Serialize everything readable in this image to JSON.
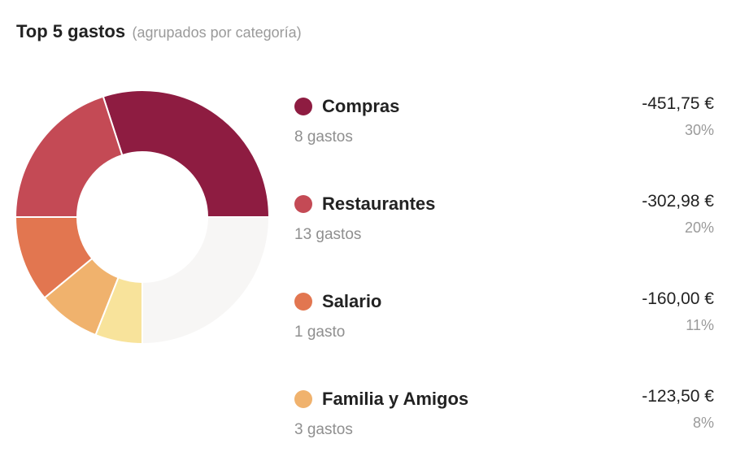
{
  "header": {
    "title": "Top 5 gastos",
    "subtitle": "(agrupados por categoría)"
  },
  "chart_data": {
    "type": "pie",
    "categories": [
      "Compras",
      "Restaurantes",
      "Salario",
      "Familia y Amigos",
      "",
      ""
    ],
    "values": [
      30,
      20,
      11,
      8,
      6,
      25
    ],
    "colors": [
      "#8e1c41",
      "#c44a55",
      "#e27650",
      "#f0b26d",
      "#f8e39b",
      "#f7f6f5"
    ],
    "hole": "donut"
  },
  "categories": [
    {
      "name": "Compras",
      "count": "8 gastos",
      "amount": "-451,75 €",
      "percent": "30%",
      "color": "#8e1c41"
    },
    {
      "name": "Restaurantes",
      "count": "13 gastos",
      "amount": "-302,98 €",
      "percent": "20%",
      "color": "#c44a55"
    },
    {
      "name": "Salario",
      "count": "1 gasto",
      "amount": "-160,00 €",
      "percent": "11%",
      "color": "#e27650"
    },
    {
      "name": "Familia y Amigos",
      "count": "3 gastos",
      "amount": "-123,50 €",
      "percent": "8%",
      "color": "#f0b26d"
    }
  ]
}
